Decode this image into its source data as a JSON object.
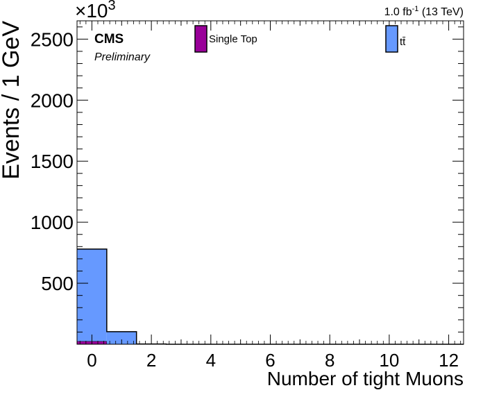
{
  "header": {
    "exponent_prefix": "×10",
    "exponent_power": "3",
    "lumi_value": "1.0 fb",
    "lumi_power": "-1",
    "lumi_energy": " (13 TeV)"
  },
  "labels": {
    "cms": "CMS",
    "preliminary": "Preliminary"
  },
  "colors": {
    "single_top": "#990099",
    "ttbar": "#6699ff",
    "frame": "#000000"
  },
  "chart_data": {
    "type": "bar",
    "stacked": true,
    "histogram": true,
    "xlabel": "Number of tight Muons",
    "ylabel": "Events / 1 GeV",
    "y_scale_note": "×10^3",
    "xlim": [
      -0.5,
      12.5
    ],
    "ylim": [
      0,
      2650
    ],
    "x_ticks": [
      0,
      2,
      4,
      6,
      8,
      10,
      12
    ],
    "y_ticks": [
      500,
      1000,
      1500,
      2000,
      2500
    ],
    "bins": [
      {
        "low": -0.5,
        "high": 0.5
      },
      {
        "low": 0.5,
        "high": 1.5
      },
      {
        "low": 1.5,
        "high": 2.5
      },
      {
        "low": 2.5,
        "high": 3.5
      },
      {
        "low": 3.5,
        "high": 4.5
      },
      {
        "low": 4.5,
        "high": 5.5
      },
      {
        "low": 5.5,
        "high": 6.5
      },
      {
        "low": 6.5,
        "high": 7.5
      },
      {
        "low": 7.5,
        "high": 8.5
      },
      {
        "low": 8.5,
        "high": 9.5
      },
      {
        "low": 9.5,
        "high": 10.5
      },
      {
        "low": 10.5,
        "high": 11.5
      },
      {
        "low": 11.5,
        "high": 12.5
      }
    ],
    "series": [
      {
        "name": "Single Top",
        "color": "#990099",
        "values": [
          25,
          3,
          0,
          0,
          0,
          0,
          0,
          0,
          0,
          0,
          0,
          0,
          0
        ]
      },
      {
        "name": "tt̄",
        "color": "#6699ff",
        "values": [
          755,
          100,
          2,
          0,
          0,
          0,
          0,
          0,
          0,
          0,
          0,
          0,
          0
        ]
      }
    ],
    "legend": [
      {
        "label": "Single Top",
        "color": "#990099"
      },
      {
        "label": "tt̄",
        "color": "#6699ff"
      }
    ],
    "legend_placement": "top"
  }
}
